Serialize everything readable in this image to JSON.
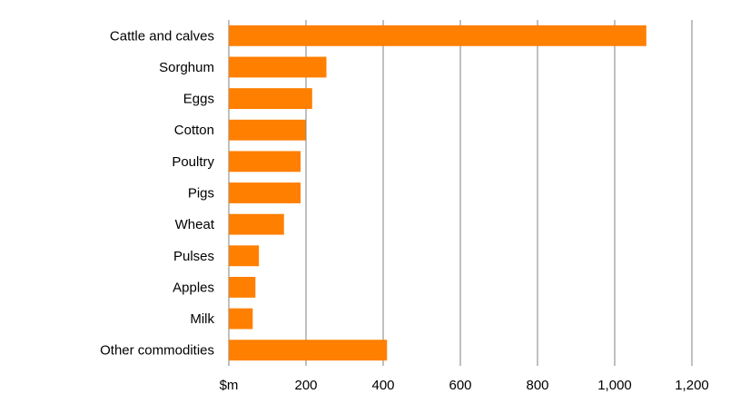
{
  "chart_data": {
    "type": "bar",
    "orientation": "horizontal",
    "title": "",
    "xlabel": "",
    "ylabel": "",
    "x_unit_label": "$m",
    "categories": [
      "Cattle and calves",
      "Sorghum",
      "Eggs",
      "Cotton",
      "Poultry",
      "Pigs",
      "Wheat",
      "Pulses",
      "Apples",
      "Milk",
      "Other commodities"
    ],
    "values": [
      1082,
      253,
      216,
      199,
      186,
      186,
      143,
      78,
      69,
      62,
      410
    ],
    "xlim": [
      0,
      1200
    ],
    "xticks": [
      0,
      200,
      400,
      600,
      800,
      1000,
      1200
    ],
    "xtick_labels": [
      "$m",
      "200",
      "400",
      "600",
      "800",
      "1,000",
      "1,200"
    ],
    "grid": "vertical",
    "legend": "none",
    "bar_color": "#FF7F00",
    "grid_color": "#808080"
  }
}
